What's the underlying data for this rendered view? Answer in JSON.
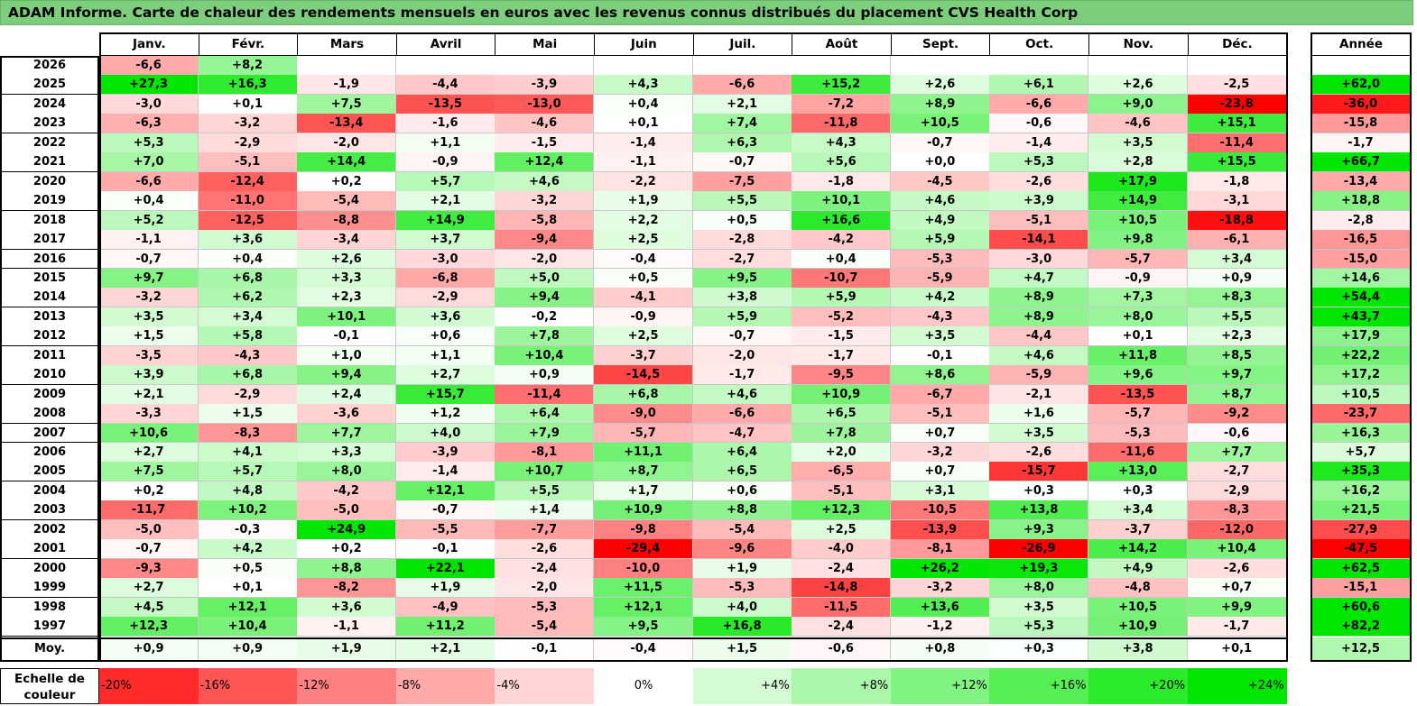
{
  "title": "ADAM Informe. Carte de chaleur des rendements mensuels en euros avec les revenus connus distribués du placement CVS Health Corp",
  "chart_data": {
    "type": "heatmap",
    "title": "ADAM Informe. Carte de chaleur des rendements mensuels en euros avec les revenus connus distribués du placement CVS Health Corp",
    "columns": [
      "Janv.",
      "Févr.",
      "Mars",
      "Avril",
      "Mai",
      "Juin",
      "Juil.",
      "Août",
      "Sept.",
      "Oct.",
      "Nov.",
      "Déc."
    ],
    "year_header": "Année",
    "rows": [
      {
        "label": "2026",
        "months": [
          "-6,6",
          "+8,2",
          "",
          "",
          "",
          "",
          "",
          "",
          "",
          "",
          "",
          ""
        ],
        "year": ""
      },
      {
        "label": "2025",
        "months": [
          "+27,3",
          "+16,3",
          "-1,9",
          "-4,4",
          "-3,9",
          "+4,3",
          "-6,6",
          "+15,2",
          "+2,6",
          "+6,1",
          "+2,6",
          "-2,5"
        ],
        "year": "+62,0"
      },
      {
        "label": "2024",
        "months": [
          "-3,0",
          "+0,1",
          "+7,5",
          "-13,5",
          "-13,0",
          "+0,4",
          "+2,1",
          "-7,2",
          "+8,9",
          "-6,6",
          "+9,0",
          "-23,8"
        ],
        "year": "-36,0"
      },
      {
        "label": "2023",
        "months": [
          "-6,3",
          "-3,2",
          "-13,4",
          "-1,6",
          "-4,6",
          "+0,1",
          "+7,4",
          "-11,8",
          "+10,5",
          "-0,6",
          "-4,6",
          "+15,1"
        ],
        "year": "-15,8"
      },
      {
        "label": "2022",
        "months": [
          "+5,3",
          "-2,9",
          "-2,0",
          "+1,1",
          "-1,5",
          "-1,4",
          "+6,3",
          "+4,3",
          "-0,7",
          "-1,4",
          "+3,5",
          "-11,4"
        ],
        "year": "-1,7"
      },
      {
        "label": "2021",
        "months": [
          "+7,0",
          "-5,1",
          "+14,4",
          "-0,9",
          "+12,4",
          "-1,1",
          "-0,7",
          "+5,6",
          "+0,0",
          "+5,3",
          "+2,8",
          "+15,5"
        ],
        "year": "+66,7"
      },
      {
        "label": "2020",
        "months": [
          "-6,6",
          "-12,4",
          "+0,2",
          "+5,7",
          "+4,6",
          "-2,2",
          "-7,5",
          "-1,8",
          "-4,5",
          "-2,6",
          "+17,9",
          "-1,8"
        ],
        "year": "-13,4"
      },
      {
        "label": "2019",
        "months": [
          "+0,4",
          "-11,0",
          "-5,4",
          "+2,1",
          "-3,2",
          "+1,9",
          "+5,5",
          "+10,1",
          "+4,6",
          "+3,9",
          "+14,9",
          "-3,1"
        ],
        "year": "+18,8"
      },
      {
        "label": "2018",
        "months": [
          "+5,2",
          "-12,5",
          "-8,8",
          "+14,9",
          "-5,8",
          "+2,2",
          "+0,5",
          "+16,6",
          "+4,9",
          "-5,1",
          "+10,5",
          "-18,8"
        ],
        "year": "-2,8"
      },
      {
        "label": "2017",
        "months": [
          "-1,1",
          "+3,6",
          "-3,4",
          "+3,7",
          "-9,4",
          "+2,5",
          "-2,8",
          "-4,2",
          "+5,9",
          "-14,1",
          "+9,8",
          "-6,1"
        ],
        "year": "-16,5"
      },
      {
        "label": "2016",
        "months": [
          "-0,7",
          "+0,4",
          "+2,6",
          "-3,0",
          "-2,0",
          "-0,4",
          "-2,7",
          "+0,4",
          "-5,3",
          "-3,0",
          "-5,7",
          "+3,4"
        ],
        "year": "-15,0"
      },
      {
        "label": "2015",
        "months": [
          "+9,7",
          "+6,8",
          "+3,3",
          "-6,8",
          "+5,0",
          "+0,5",
          "+9,5",
          "-10,7",
          "-5,9",
          "+4,7",
          "-0,9",
          "+0,9"
        ],
        "year": "+14,6"
      },
      {
        "label": "2014",
        "months": [
          "-3,2",
          "+6,2",
          "+2,3",
          "-2,9",
          "+9,4",
          "-4,1",
          "+3,8",
          "+5,9",
          "+4,2",
          "+8,9",
          "+7,3",
          "+8,3"
        ],
        "year": "+54,4"
      },
      {
        "label": "2013",
        "months": [
          "+3,5",
          "+3,4",
          "+10,1",
          "+3,6",
          "-0,2",
          "-0,9",
          "+5,9",
          "-5,2",
          "-4,3",
          "+8,9",
          "+8,0",
          "+5,5"
        ],
        "year": "+43,7"
      },
      {
        "label": "2012",
        "months": [
          "+1,5",
          "+5,8",
          "-0,1",
          "+0,6",
          "+7,8",
          "+2,5",
          "-0,7",
          "-1,5",
          "+3,5",
          "-4,4",
          "+0,1",
          "+2,3"
        ],
        "year": "+17,9"
      },
      {
        "label": "2011",
        "months": [
          "-3,5",
          "-4,3",
          "+1,0",
          "+1,1",
          "+10,4",
          "-3,7",
          "-2,0",
          "-1,7",
          "-0,1",
          "+4,6",
          "+11,8",
          "+8,5"
        ],
        "year": "+22,2"
      },
      {
        "label": "2010",
        "months": [
          "+3,9",
          "+6,8",
          "+9,4",
          "+2,7",
          "+0,9",
          "-14,5",
          "-1,7",
          "-9,5",
          "+8,6",
          "-5,9",
          "+9,6",
          "+9,7"
        ],
        "year": "+17,2"
      },
      {
        "label": "2009",
        "months": [
          "+2,1",
          "-2,9",
          "+2,4",
          "+15,7",
          "-11,4",
          "+6,8",
          "+4,6",
          "+10,9",
          "-6,7",
          "-2,1",
          "-13,5",
          "+8,7"
        ],
        "year": "+10,5"
      },
      {
        "label": "2008",
        "months": [
          "-3,3",
          "+1,5",
          "-3,6",
          "+1,2",
          "+6,4",
          "-9,0",
          "-6,6",
          "+6,5",
          "-5,1",
          "+1,6",
          "-5,7",
          "-9,2"
        ],
        "year": "-23,7"
      },
      {
        "label": "2007",
        "months": [
          "+10,6",
          "-8,3",
          "+7,7",
          "+4,0",
          "+7,9",
          "-5,7",
          "-4,7",
          "+7,8",
          "+0,7",
          "+3,5",
          "-5,3",
          "-0,6"
        ],
        "year": "+16,3"
      },
      {
        "label": "2006",
        "months": [
          "+2,7",
          "+4,1",
          "+3,3",
          "-3,9",
          "-8,1",
          "+11,1",
          "+6,4",
          "+2,0",
          "-3,2",
          "-2,6",
          "-11,6",
          "+7,7"
        ],
        "year": "+5,7"
      },
      {
        "label": "2005",
        "months": [
          "+7,5",
          "+5,7",
          "+8,0",
          "-1,4",
          "+10,7",
          "+8,7",
          "+6,5",
          "-6,5",
          "+0,7",
          "-15,7",
          "+13,0",
          "-2,7"
        ],
        "year": "+35,3"
      },
      {
        "label": "2004",
        "months": [
          "+0,2",
          "+4,8",
          "-4,2",
          "+12,1",
          "+5,5",
          "+1,7",
          "+0,6",
          "-5,1",
          "+3,1",
          "+0,3",
          "+0,3",
          "-2,9"
        ],
        "year": "+16,2"
      },
      {
        "label": "2003",
        "months": [
          "-11,7",
          "+10,2",
          "-5,0",
          "-0,7",
          "+1,4",
          "+10,9",
          "+8,8",
          "+12,3",
          "-10,5",
          "+13,8",
          "+3,4",
          "-8,3"
        ],
        "year": "+21,5"
      },
      {
        "label": "2002",
        "months": [
          "-5,0",
          "-0,3",
          "+24,9",
          "-5,5",
          "-7,7",
          "-9,8",
          "-5,4",
          "+2,5",
          "-13,9",
          "+9,3",
          "-3,7",
          "-12,0"
        ],
        "year": "-27,9"
      },
      {
        "label": "2001",
        "months": [
          "-0,7",
          "+4,2",
          "+0,2",
          "-0,1",
          "-2,6",
          "-29,4",
          "-9,6",
          "-4,0",
          "-8,1",
          "-26,9",
          "+14,2",
          "+10,4"
        ],
        "year": "-47,5"
      },
      {
        "label": "2000",
        "months": [
          "-9,3",
          "+0,5",
          "+8,8",
          "+22,1",
          "-2,4",
          "-10,0",
          "+1,9",
          "-2,4",
          "+26,2",
          "+19,3",
          "+4,9",
          "-2,6"
        ],
        "year": "+62,5"
      },
      {
        "label": "1999",
        "months": [
          "+2,7",
          "+0,1",
          "-8,2",
          "+1,9",
          "-2,0",
          "+11,5",
          "-5,3",
          "-14,8",
          "-3,2",
          "+8,0",
          "-4,8",
          "+0,7"
        ],
        "year": "-15,1"
      },
      {
        "label": "1998",
        "months": [
          "+4,5",
          "+12,1",
          "+3,6",
          "-4,9",
          "-5,3",
          "+12,1",
          "+4,0",
          "-11,5",
          "+13,6",
          "+3,5",
          "+10,5",
          "+9,9"
        ],
        "year": "+60,6"
      },
      {
        "label": "1997",
        "months": [
          "+12,3",
          "+10,4",
          "-1,1",
          "+11,2",
          "-5,4",
          "+9,5",
          "+16,8",
          "-2,4",
          "-1,2",
          "+5,3",
          "+10,9",
          "-1,7"
        ],
        "year": "+82,2"
      }
    ],
    "average": {
      "label": "Moy.",
      "months": [
        "+0,9",
        "+0,9",
        "+1,9",
        "+2,1",
        "-0,1",
        "-0,4",
        "+1,5",
        "-0,6",
        "+0,8",
        "+0,3",
        "+3,8",
        "+0,1"
      ],
      "year": "+12,5"
    },
    "legend": {
      "title_line1": "Echelle de",
      "title_line2": "couleur",
      "steps": [
        "-20%",
        "-16%",
        "-12%",
        "-8%",
        "-4%",
        "0%",
        "+4%",
        "+8%",
        "+12%",
        "+16%",
        "+20%",
        "+24%"
      ]
    }
  },
  "colors": {
    "title_bg": "#7ccd7c",
    "negative_max": "#ff0000",
    "positive_max": "#00dd00",
    "neutral": "#ffffff"
  }
}
